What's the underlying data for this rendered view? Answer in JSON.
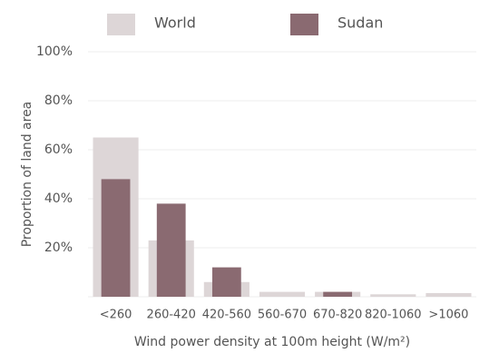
{
  "chart_data": {
    "type": "bar",
    "y_label": "Proportion of land area",
    "x_label": "Wind power density at 100m height (W/m²)",
    "categories": [
      "<260",
      "260-420",
      "420-560",
      "560-670",
      "670-820",
      "820-1060",
      ">1060"
    ],
    "series": [
      {
        "name": "World",
        "color": "#ddd6d7",
        "values": [
          65,
          23,
          6,
          2,
          2,
          1,
          1.5
        ]
      },
      {
        "name": "Sudan",
        "color": "#8a6a71",
        "values": [
          48,
          38,
          12,
          0,
          2,
          0,
          0
        ]
      }
    ],
    "ylim": [
      0,
      100
    ],
    "yticks": [
      {
        "value": 20,
        "label": "20%"
      },
      {
        "value": 40,
        "label": "40%"
      },
      {
        "value": 60,
        "label": "60%"
      },
      {
        "value": 80,
        "label": "80%"
      },
      {
        "value": 100,
        "label": "100%"
      }
    ],
    "grid": true
  }
}
